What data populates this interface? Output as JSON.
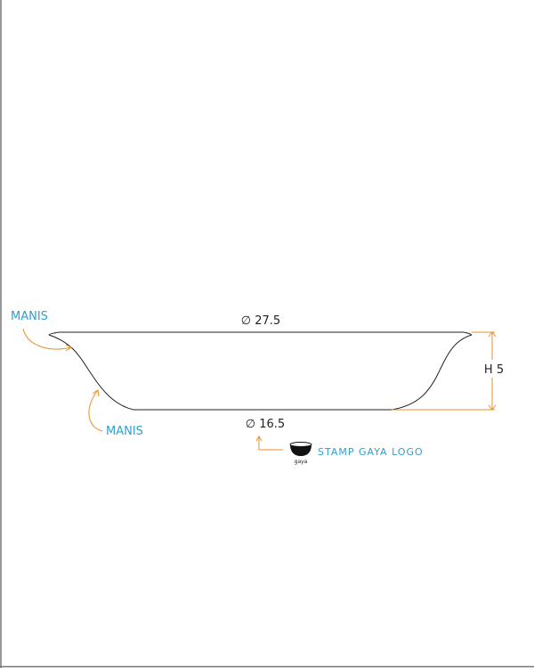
{
  "labels": {
    "rim_diameter": "∅ 27.5",
    "base_diameter": "∅ 16.5",
    "height": "H 5",
    "manis_top": "MANIS",
    "manis_bottom": "MANIS",
    "stamp": "STAMP GAYA LOGO",
    "logo_text": "gaya"
  },
  "colors": {
    "outline": "#222222",
    "accent": "#e8902a",
    "label": "#2f9fd0"
  }
}
